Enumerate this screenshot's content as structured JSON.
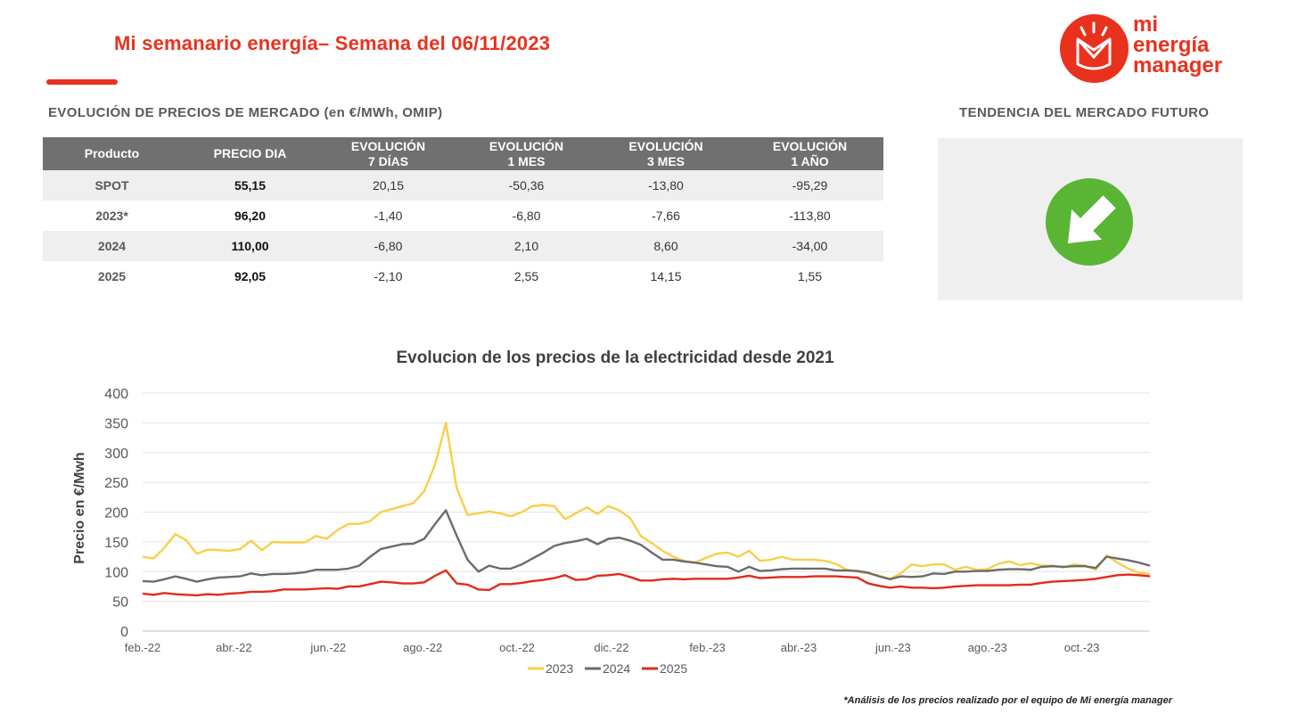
{
  "header": {
    "title": "Mi semanario energía– Semana del 06/11/2023",
    "logo_lines": [
      "mi",
      "energía",
      "manager"
    ],
    "accent_color": "#e8321e"
  },
  "market_table": {
    "heading": "EVOLUCIÓN DE PRECIOS DE MERCADO (en €/MWh, OMIP)",
    "columns": [
      [
        "Producto"
      ],
      [
        "PRECIO DIA"
      ],
      [
        "EVOLUCIÓN",
        "7 DÍAS"
      ],
      [
        "EVOLUCIÓN",
        "1 MES"
      ],
      [
        "EVOLUCIÓN",
        "3 MES"
      ],
      [
        "EVOLUCIÓN",
        "1 AÑO"
      ]
    ],
    "rows": [
      [
        "SPOT",
        "55,15",
        "20,15",
        "-50,36",
        "-13,80",
        "-95,29"
      ],
      [
        "2023*",
        "96,20",
        "-1,40",
        "-6,80",
        "-7,66",
        "-113,80"
      ],
      [
        "2024",
        "110,00",
        "-6,80",
        "2,10",
        "8,60",
        "-34,00"
      ],
      [
        "2025",
        "92,05",
        "-2,10",
        "2,55",
        "14,15",
        "1,55"
      ]
    ]
  },
  "trend": {
    "heading": "TENDENCIA DEL MERCADO FUTURO",
    "icon": "down-right-arrow-icon",
    "color": "#5ab535"
  },
  "chart_data": {
    "type": "line",
    "title": "Evolucion de los precios de la electricidad desde 2021",
    "xlabel": "",
    "ylabel": "Precio en €/Mwh",
    "ylim": [
      0,
      400
    ],
    "yticks": [
      0,
      50,
      100,
      150,
      200,
      250,
      300,
      350,
      400
    ],
    "x_tick_labels": [
      "feb.-22",
      "abr.-22",
      "jun.-22",
      "ago.-22",
      "oct.-22",
      "dic.-22",
      "feb.-23",
      "abr.-23",
      "jun.-23",
      "ago.-23",
      "oct.-23"
    ],
    "grid": true,
    "legend_position": "bottom",
    "x_start": "2022-02-01",
    "x_step": "weekly",
    "series": [
      {
        "name": "2023",
        "color": "#f8cf48",
        "values": [
          125,
          122,
          140,
          163,
          153,
          130,
          137,
          136,
          135,
          138,
          152,
          136,
          150,
          149,
          149,
          149,
          160,
          155,
          170,
          180,
          180,
          185,
          200,
          205,
          210,
          215,
          235,
          280,
          350,
          240,
          195,
          198,
          201,
          198,
          193,
          200,
          210,
          212,
          210,
          188,
          198,
          208,
          197,
          210,
          203,
          190,
          160,
          148,
          135,
          125,
          118,
          115,
          123,
          130,
          132,
          125,
          135,
          118,
          120,
          125,
          120,
          120,
          120,
          118,
          113,
          103,
          100,
          97,
          93,
          88,
          97,
          112,
          109,
          112,
          112,
          103,
          108,
          103,
          104,
          113,
          117,
          111,
          114,
          110,
          110,
          107,
          112,
          110,
          103,
          127,
          115,
          105,
          98,
          96
        ]
      },
      {
        "name": "2024",
        "color": "#6b6b6b",
        "values": [
          84,
          83,
          87,
          92,
          88,
          83,
          87,
          90,
          91,
          92,
          97,
          94,
          96,
          96,
          97,
          99,
          103,
          103,
          103,
          105,
          110,
          125,
          138,
          142,
          146,
          147,
          155,
          180,
          203,
          160,
          120,
          100,
          110,
          105,
          105,
          112,
          122,
          132,
          143,
          148,
          151,
          155,
          146,
          155,
          157,
          152,
          145,
          132,
          120,
          120,
          117,
          115,
          112,
          109,
          108,
          100,
          108,
          101,
          102,
          104,
          105,
          105,
          105,
          105,
          102,
          102,
          101,
          98,
          92,
          87,
          92,
          91,
          92,
          97,
          96,
          100,
          100,
          101,
          101,
          103,
          104,
          104,
          103,
          108,
          109,
          108,
          109,
          109,
          106,
          125,
          122,
          119,
          115,
          110
        ]
      },
      {
        "name": "2025",
        "color": "#e02b1a",
        "values": [
          63,
          61,
          64,
          62,
          61,
          60,
          62,
          61,
          63,
          64,
          66,
          66,
          67,
          70,
          70,
          70,
          71,
          72,
          71,
          75,
          75,
          79,
          83,
          82,
          80,
          80,
          82,
          93,
          102,
          80,
          78,
          70,
          69,
          79,
          79,
          81,
          84,
          86,
          89,
          94,
          86,
          87,
          93,
          94,
          96,
          91,
          85,
          85,
          87,
          88,
          87,
          88,
          88,
          88,
          88,
          90,
          93,
          89,
          90,
          91,
          91,
          91,
          92,
          92,
          92,
          91,
          90,
          80,
          76,
          73,
          75,
          73,
          73,
          72,
          73,
          75,
          76,
          77,
          77,
          77,
          77,
          78,
          78,
          81,
          83,
          84,
          85,
          86,
          88,
          91,
          94,
          95,
          94,
          92
        ]
      }
    ]
  },
  "footnote": "*Análisis de los precios realizado por el equipo de Mi energía manager"
}
